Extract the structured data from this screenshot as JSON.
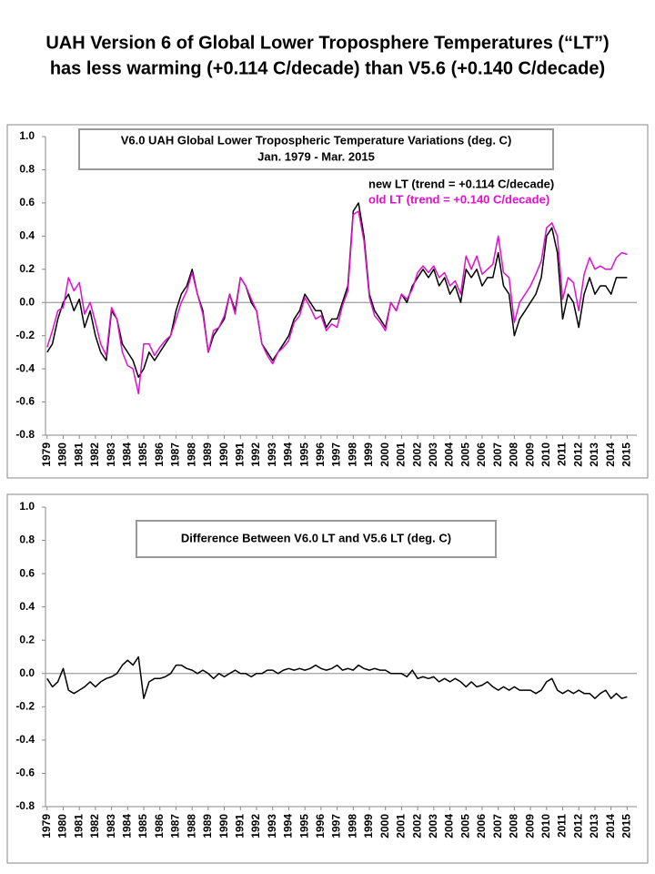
{
  "header": {
    "title": [
      "UAH Version 6 of Global Lower Troposphere Temperatures (“LT”)",
      "has less warming (+0.114 C/decade) than V5.6 (+0.140 C/decade)"
    ]
  },
  "chart_data": [
    {
      "type": "line",
      "title": "V6.0 UAH Global Lower Tropospheric Temperature Variations (deg. C)",
      "subtitle": "Jan. 1979 - Mar. 2015",
      "x": [
        1979,
        1979.33,
        1979.67,
        1980,
        1980.33,
        1980.67,
        1981,
        1981.33,
        1981.67,
        1982,
        1982.33,
        1982.67,
        1983,
        1983.33,
        1983.67,
        1984,
        1984.33,
        1984.67,
        1985,
        1985.33,
        1985.67,
        1986,
        1986.33,
        1986.67,
        1987,
        1987.33,
        1987.67,
        1988,
        1988.33,
        1988.67,
        1989,
        1989.33,
        1989.67,
        1990,
        1990.33,
        1990.67,
        1991,
        1991.33,
        1991.67,
        1992,
        1992.33,
        1992.67,
        1993,
        1993.33,
        1993.67,
        1994,
        1994.33,
        1994.67,
        1995,
        1995.33,
        1995.67,
        1996,
        1996.33,
        1996.67,
        1997,
        1997.33,
        1997.67,
        1998,
        1998.33,
        1998.67,
        1999,
        1999.33,
        1999.67,
        2000,
        2000.33,
        2000.67,
        2001,
        2001.33,
        2001.67,
        2002,
        2002.33,
        2002.67,
        2003,
        2003.33,
        2003.67,
        2004,
        2004.33,
        2004.67,
        2005,
        2005.33,
        2005.67,
        2006,
        2006.33,
        2006.67,
        2007,
        2007.33,
        2007.67,
        2008,
        2008.33,
        2008.67,
        2009,
        2009.33,
        2009.67,
        2010,
        2010.33,
        2010.67,
        2011,
        2011.33,
        2011.67,
        2012,
        2012.33,
        2012.67,
        2013,
        2013.33,
        2013.67,
        2014,
        2014.33,
        2014.67,
        2015
      ],
      "series": [
        {
          "name": "new LT  (trend = +0.114 C/decade)",
          "color": "#000000",
          "values": [
            -0.3,
            -0.25,
            -0.1,
            0.0,
            0.05,
            -0.05,
            0.02,
            -0.15,
            -0.05,
            -0.2,
            -0.3,
            -0.35,
            -0.05,
            -0.1,
            -0.25,
            -0.3,
            -0.35,
            -0.45,
            -0.4,
            -0.3,
            -0.35,
            -0.3,
            -0.25,
            -0.2,
            -0.05,
            0.05,
            0.1,
            0.2,
            0.05,
            -0.05,
            -0.3,
            -0.2,
            -0.15,
            -0.1,
            0.05,
            -0.05,
            0.15,
            0.1,
            0.0,
            -0.05,
            -0.25,
            -0.3,
            -0.35,
            -0.3,
            -0.25,
            -0.2,
            -0.1,
            -0.05,
            0.05,
            0.0,
            -0.05,
            -0.05,
            -0.15,
            -0.1,
            -0.1,
            0.0,
            0.1,
            0.55,
            0.6,
            0.4,
            0.05,
            -0.05,
            -0.1,
            -0.15,
            0.0,
            -0.05,
            0.05,
            0.0,
            0.1,
            0.15,
            0.2,
            0.15,
            0.2,
            0.1,
            0.15,
            0.05,
            0.1,
            0.0,
            0.2,
            0.15,
            0.2,
            0.1,
            0.15,
            0.15,
            0.3,
            0.1,
            0.05,
            -0.2,
            -0.1,
            -0.05,
            0.0,
            0.05,
            0.15,
            0.4,
            0.45,
            0.3,
            -0.1,
            0.05,
            0.0,
            -0.15,
            0.05,
            0.15,
            0.05,
            0.1,
            0.1,
            0.05,
            0.15,
            0.15,
            0.15
          ]
        },
        {
          "name": "old LT  (trend = +0.140 C/decade)",
          "color": "#e010d0",
          "values": [
            -0.27,
            -0.17,
            -0.05,
            -0.03,
            0.15,
            0.07,
            0.12,
            -0.07,
            0.0,
            -0.12,
            -0.25,
            -0.32,
            -0.03,
            -0.1,
            -0.3,
            -0.38,
            -0.4,
            -0.55,
            -0.25,
            -0.25,
            -0.32,
            -0.27,
            -0.23,
            -0.2,
            -0.1,
            0.0,
            0.07,
            0.18,
            0.05,
            -0.07,
            -0.3,
            -0.17,
            -0.15,
            -0.08,
            0.05,
            -0.07,
            0.15,
            0.1,
            0.02,
            -0.05,
            -0.25,
            -0.32,
            -0.37,
            -0.3,
            -0.27,
            -0.23,
            -0.12,
            -0.08,
            0.03,
            -0.03,
            -0.1,
            -0.08,
            -0.17,
            -0.13,
            -0.15,
            -0.02,
            0.07,
            0.53,
            0.55,
            0.37,
            0.03,
            -0.08,
            -0.12,
            -0.17,
            0.0,
            -0.05,
            0.05,
            0.02,
            0.08,
            0.18,
            0.22,
            0.18,
            0.22,
            0.15,
            0.18,
            0.1,
            0.13,
            0.05,
            0.28,
            0.2,
            0.28,
            0.17,
            0.2,
            0.23,
            0.4,
            0.18,
            0.15,
            -0.12,
            0.0,
            0.05,
            0.1,
            0.17,
            0.25,
            0.45,
            0.48,
            0.4,
            0.02,
            0.15,
            0.12,
            -0.05,
            0.17,
            0.27,
            0.2,
            0.22,
            0.2,
            0.2,
            0.27,
            0.3,
            0.29
          ]
        }
      ],
      "xlim": [
        1978.9,
        2015.6
      ],
      "xticks": [
        1979,
        1980,
        1981,
        1982,
        1983,
        1984,
        1985,
        1986,
        1987,
        1988,
        1989,
        1990,
        1991,
        1992,
        1993,
        1994,
        1995,
        1996,
        1997,
        1998,
        1999,
        2000,
        2001,
        2002,
        2003,
        2004,
        2005,
        2006,
        2007,
        2008,
        2009,
        2010,
        2011,
        2012,
        2013,
        2014,
        2015
      ],
      "ylim": [
        -0.8,
        1.0
      ],
      "yticks": [
        {
          "value": 1.0,
          "label": "1.0"
        },
        0.8,
        0.6,
        0.4,
        0.2,
        {
          "value": 0.0,
          "label": "0.0"
        },
        -0.2,
        -0.4,
        -0.6,
        -0.8
      ]
    },
    {
      "type": "line",
      "title": "Difference Between V6.0 LT and V5.6 LT  (deg. C)",
      "x": [
        1979,
        1979.33,
        1979.67,
        1980,
        1980.33,
        1980.67,
        1981,
        1981.33,
        1981.67,
        1982,
        1982.33,
        1982.67,
        1983,
        1983.33,
        1983.67,
        1984,
        1984.33,
        1984.67,
        1985,
        1985.33,
        1985.67,
        1986,
        1986.33,
        1986.67,
        1987,
        1987.33,
        1987.67,
        1988,
        1988.33,
        1988.67,
        1989,
        1989.33,
        1989.67,
        1990,
        1990.33,
        1990.67,
        1991,
        1991.33,
        1991.67,
        1992,
        1992.33,
        1992.67,
        1993,
        1993.33,
        1993.67,
        1994,
        1994.33,
        1994.67,
        1995,
        1995.33,
        1995.67,
        1996,
        1996.33,
        1996.67,
        1997,
        1997.33,
        1997.67,
        1998,
        1998.33,
        1998.67,
        1999,
        1999.33,
        1999.67,
        2000,
        2000.33,
        2000.67,
        2001,
        2001.33,
        2001.67,
        2002,
        2002.33,
        2002.67,
        2003,
        2003.33,
        2003.67,
        2004,
        2004.33,
        2004.67,
        2005,
        2005.33,
        2005.67,
        2006,
        2006.33,
        2006.67,
        2007,
        2007.33,
        2007.67,
        2008,
        2008.33,
        2008.67,
        2009,
        2009.33,
        2009.67,
        2010,
        2010.33,
        2010.67,
        2011,
        2011.33,
        2011.67,
        2012,
        2012.33,
        2012.67,
        2013,
        2013.33,
        2013.67,
        2014,
        2014.33,
        2014.67,
        2015
      ],
      "series": [
        {
          "color": "#000000",
          "values": [
            -0.03,
            -0.08,
            -0.05,
            0.03,
            -0.1,
            -0.12,
            -0.1,
            -0.08,
            -0.05,
            -0.08,
            -0.05,
            -0.03,
            -0.02,
            0.0,
            0.05,
            0.08,
            0.05,
            0.1,
            -0.15,
            -0.05,
            -0.03,
            -0.03,
            -0.02,
            0.0,
            0.05,
            0.05,
            0.03,
            0.02,
            0.0,
            0.02,
            0.0,
            -0.03,
            0.0,
            -0.02,
            0.0,
            0.02,
            0.0,
            0.0,
            -0.02,
            0.0,
            0.0,
            0.02,
            0.02,
            0.0,
            0.02,
            0.03,
            0.02,
            0.03,
            0.02,
            0.03,
            0.05,
            0.03,
            0.02,
            0.03,
            0.05,
            0.02,
            0.03,
            0.02,
            0.05,
            0.03,
            0.02,
            0.03,
            0.02,
            0.02,
            0.0,
            0.0,
            0.0,
            -0.02,
            0.02,
            -0.03,
            -0.02,
            -0.03,
            -0.02,
            -0.05,
            -0.03,
            -0.05,
            -0.03,
            -0.05,
            -0.08,
            -0.05,
            -0.08,
            -0.07,
            -0.05,
            -0.08,
            -0.1,
            -0.08,
            -0.1,
            -0.08,
            -0.1,
            -0.1,
            -0.1,
            -0.12,
            -0.1,
            -0.05,
            -0.03,
            -0.1,
            -0.12,
            -0.1,
            -0.12,
            -0.1,
            -0.12,
            -0.12,
            -0.15,
            -0.12,
            -0.1,
            -0.15,
            -0.12,
            -0.15,
            -0.14
          ]
        }
      ],
      "xlim": [
        1978.9,
        2015.6
      ],
      "xticks": [
        1979,
        1980,
        1981,
        1982,
        1983,
        1984,
        1985,
        1986,
        1987,
        1988,
        1989,
        1990,
        1991,
        1992,
        1993,
        1994,
        1995,
        1996,
        1997,
        1998,
        1999,
        2000,
        2001,
        2002,
        2003,
        2004,
        2005,
        2006,
        2007,
        2008,
        2009,
        2010,
        2011,
        2012,
        2013,
        2014,
        2015
      ],
      "ylim": [
        -0.8,
        1.0
      ],
      "yticks": [
        {
          "value": 1.0,
          "label": "1.0"
        },
        0.8,
        0.6,
        0.4,
        0.2,
        {
          "value": 0.0,
          "label": "0.0"
        },
        -0.2,
        -0.4,
        -0.6,
        -0.8
      ]
    }
  ]
}
